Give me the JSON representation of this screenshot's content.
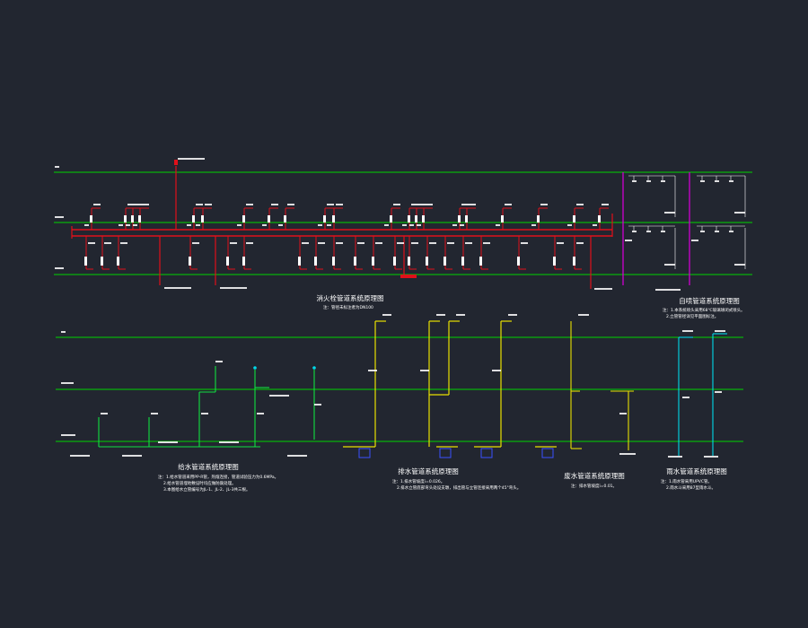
{
  "colors": {
    "background": "#222630",
    "floor_line": "#00d400",
    "fire_pipe": "#e0101a",
    "sprinkler_pipe": "#d000d0",
    "water_supply_pipe": "#10e040",
    "drain_pipe": "#e8e000",
    "rain_pipe": "#00d8e8",
    "text": "#ffffff",
    "equipment": "#3a50ff"
  },
  "diagrams": {
    "fire_hydrant": {
      "title": "消火栓管道系统原理图",
      "note": "注：管径未标注者为DN100"
    },
    "sprinkler": {
      "title": "自喷管道系统原理图",
      "notes": [
        "注：1.本系统喷头采用68℃玻璃球闭式喷头。",
        "2.立管管径详见平面图标注。"
      ]
    },
    "water_supply": {
      "title": "给水管道系统原理图",
      "notes": [
        "注：1.给水管道采用PP-R管，热熔连接，管道试验压力为0.6MPa。",
        "2.给水管道埋地敷设时均应做防腐处理。",
        "3.本图给水立管编号为JL-1、JL-2、JL-3共三根。"
      ]
    },
    "drainage": {
      "title": "排水管道系统原理图",
      "notes": [
        "注：1.排水管坡度i=0.026。",
        "2.排水立管底部弯头处设支墩，排出管与立管连接采用两个45°弯头。"
      ]
    },
    "condensate": {
      "title": "废水管道系统原理图",
      "note": "注：排水管坡度i=0.01。"
    },
    "rainwater": {
      "title": "雨水管道系统原理图",
      "notes": [
        "注：1.雨水管采用UPVC管。",
        "2.雨水斗采用87型雨水斗。"
      ]
    }
  }
}
